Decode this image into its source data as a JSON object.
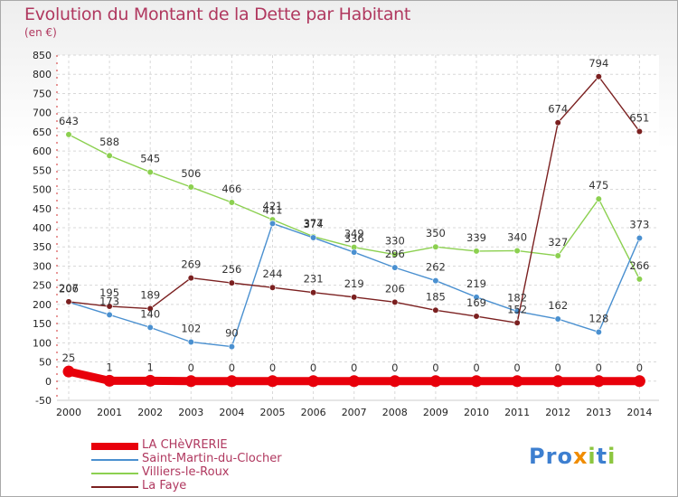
{
  "title": "Evolution du Montant de la Dette par Habitant",
  "subtitle": "(en €)",
  "logo": {
    "text": "Proxiti",
    "letters": [
      "P",
      "r",
      "o",
      "x",
      "i",
      "t",
      "i"
    ],
    "colors": [
      "#3d7fd0",
      "#3d7fd0",
      "#3d7fd0",
      "#f08c00",
      "#8cc63f",
      "#3d7fd0",
      "#8cc63f"
    ]
  },
  "chart_data": {
    "type": "line",
    "title": "Evolution du Montant de la Dette par Habitant",
    "subtitle": "(en €)",
    "x": [
      "2000",
      "2001",
      "2002",
      "2003",
      "2004",
      "2005",
      "2006",
      "2007",
      "2008",
      "2009",
      "2010",
      "2011",
      "2012",
      "2013",
      "2014"
    ],
    "ylim": [
      -50,
      850
    ],
    "yticks": [
      -50,
      0,
      50,
      100,
      150,
      200,
      250,
      300,
      350,
      400,
      450,
      500,
      550,
      600,
      650,
      700,
      750,
      800,
      850
    ],
    "grid": true,
    "legend": "bottom-left",
    "series": [
      {
        "name": "LA CHèVRERIE",
        "color": "#e8000b",
        "values": [
          25,
          1,
          1,
          0,
          0,
          0,
          0,
          0,
          0,
          0,
          0,
          0,
          0,
          0,
          0
        ]
      },
      {
        "name": "Saint-Martin-du-Clocher",
        "color": "#4a90d0",
        "values": [
          206,
          173,
          140,
          102,
          90,
          411,
          374,
          336,
          296,
          262,
          219,
          182,
          162,
          128,
          373
        ]
      },
      {
        "name": "Villiers-le-Roux",
        "color": "#8cd050",
        "values": [
          643,
          588,
          545,
          506,
          466,
          421,
          377,
          349,
          330,
          350,
          339,
          340,
          327,
          475,
          266
        ]
      },
      {
        "name": "La Faye",
        "color": "#7b2020",
        "values": [
          207,
          195,
          189,
          269,
          256,
          244,
          231,
          219,
          206,
          185,
          169,
          152,
          674,
          794,
          651
        ]
      }
    ]
  }
}
